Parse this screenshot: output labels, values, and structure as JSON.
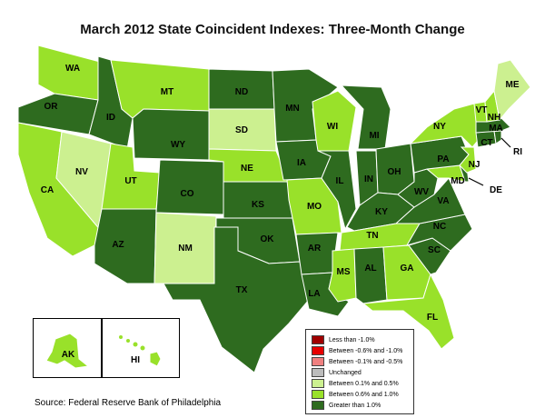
{
  "title": "March 2012 State Coincident Indexes: Three-Month Change",
  "source": "Source: Federal Reserve Bank of Philadelphia",
  "colors": {
    "lt_neg1": "#a00000",
    "neg06_neg1": "#e60000",
    "neg01_neg05": "#f08080",
    "unchanged": "#bcbcbc",
    "p01_p05": "#ccf090",
    "p06_p10": "#99e12a",
    "gt_p10": "#2e6b1f",
    "border": "#ffffff"
  },
  "legend": [
    {
      "label": "Less than -1.0%",
      "color_key": "lt_neg1"
    },
    {
      "label": "Between -0.6% and -1.0%",
      "color_key": "neg06_neg1"
    },
    {
      "label": "Between -0.1% and -0.5%",
      "color_key": "neg01_neg05"
    },
    {
      "label": "Unchanged",
      "color_key": "unchanged"
    },
    {
      "label": "Between 0.1% and 0.5%",
      "color_key": "p01_p05"
    },
    {
      "label": "Between 0.6% and 1.0%",
      "color_key": "p06_p10"
    },
    {
      "label": "Greater than 1.0%",
      "color_key": "gt_p10"
    }
  ],
  "states": [
    {
      "abbr": "WA",
      "cat": "p06_p10"
    },
    {
      "abbr": "OR",
      "cat": "gt_p10"
    },
    {
      "abbr": "CA",
      "cat": "p06_p10"
    },
    {
      "abbr": "ID",
      "cat": "gt_p10"
    },
    {
      "abbr": "NV",
      "cat": "p01_p05"
    },
    {
      "abbr": "UT",
      "cat": "p06_p10"
    },
    {
      "abbr": "AZ",
      "cat": "gt_p10"
    },
    {
      "abbr": "MT",
      "cat": "p06_p10"
    },
    {
      "abbr": "WY",
      "cat": "gt_p10"
    },
    {
      "abbr": "CO",
      "cat": "gt_p10"
    },
    {
      "abbr": "NM",
      "cat": "p01_p05"
    },
    {
      "abbr": "ND",
      "cat": "gt_p10"
    },
    {
      "abbr": "SD",
      "cat": "p01_p05"
    },
    {
      "abbr": "NE",
      "cat": "p06_p10"
    },
    {
      "abbr": "KS",
      "cat": "gt_p10"
    },
    {
      "abbr": "OK",
      "cat": "gt_p10"
    },
    {
      "abbr": "TX",
      "cat": "gt_p10"
    },
    {
      "abbr": "MN",
      "cat": "gt_p10"
    },
    {
      "abbr": "IA",
      "cat": "gt_p10"
    },
    {
      "abbr": "MO",
      "cat": "p06_p10"
    },
    {
      "abbr": "AR",
      "cat": "gt_p10"
    },
    {
      "abbr": "LA",
      "cat": "gt_p10"
    },
    {
      "abbr": "WI",
      "cat": "p06_p10"
    },
    {
      "abbr": "IL",
      "cat": "gt_p10"
    },
    {
      "abbr": "MI",
      "cat": "gt_p10"
    },
    {
      "abbr": "IN",
      "cat": "gt_p10"
    },
    {
      "abbr": "OH",
      "cat": "gt_p10"
    },
    {
      "abbr": "KY",
      "cat": "gt_p10"
    },
    {
      "abbr": "TN",
      "cat": "p06_p10"
    },
    {
      "abbr": "MS",
      "cat": "p06_p10"
    },
    {
      "abbr": "AL",
      "cat": "gt_p10"
    },
    {
      "abbr": "GA",
      "cat": "p06_p10"
    },
    {
      "abbr": "FL",
      "cat": "p06_p10"
    },
    {
      "abbr": "SC",
      "cat": "gt_p10"
    },
    {
      "abbr": "NC",
      "cat": "gt_p10"
    },
    {
      "abbr": "VA",
      "cat": "gt_p10"
    },
    {
      "abbr": "WV",
      "cat": "gt_p10"
    },
    {
      "abbr": "MD",
      "cat": "p06_p10"
    },
    {
      "abbr": "DE",
      "cat": "gt_p10"
    },
    {
      "abbr": "PA",
      "cat": "gt_p10"
    },
    {
      "abbr": "NJ",
      "cat": "p06_p10"
    },
    {
      "abbr": "NY",
      "cat": "p06_p10"
    },
    {
      "abbr": "CT",
      "cat": "gt_p10"
    },
    {
      "abbr": "RI",
      "cat": "gt_p10"
    },
    {
      "abbr": "MA",
      "cat": "gt_p10"
    },
    {
      "abbr": "VT",
      "cat": "p06_p10"
    },
    {
      "abbr": "NH",
      "cat": "p06_p10"
    },
    {
      "abbr": "ME",
      "cat": "p01_p05"
    },
    {
      "abbr": "AK",
      "cat": "p06_p10"
    },
    {
      "abbr": "HI",
      "cat": "p06_p10"
    }
  ]
}
